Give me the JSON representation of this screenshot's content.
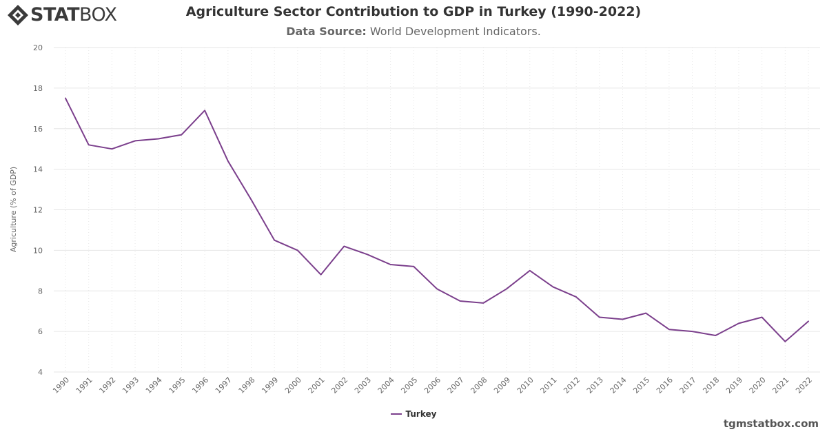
{
  "brand": {
    "logo_bold": "STAT",
    "logo_thin": "BOX",
    "site": "tgmstatbox.com"
  },
  "header": {
    "title": "Agriculture Sector Contribution to GDP in Turkey (1990-2022)",
    "source_label": "Data Source:",
    "source_value": "World Development Indicators."
  },
  "colors": {
    "series": "#7b3f8c",
    "grid": "#e6e6e6",
    "axis_text": "#666666"
  },
  "chart_data": {
    "type": "line",
    "title": "Agriculture Sector Contribution to GDP in Turkey (1990-2022)",
    "xlabel": "",
    "ylabel": "Agriculture (% of GDP)",
    "ylim": [
      4,
      20
    ],
    "yticks": [
      4,
      6,
      8,
      10,
      12,
      14,
      16,
      18,
      20
    ],
    "grid": true,
    "legend_position": "bottom-center",
    "x": [
      "1990",
      "1991",
      "1992",
      "1993",
      "1994",
      "1995",
      "1996",
      "1997",
      "1998",
      "1999",
      "2000",
      "2001",
      "2002",
      "2003",
      "2004",
      "2005",
      "2006",
      "2007",
      "2008",
      "2009",
      "2010",
      "2011",
      "2012",
      "2013",
      "2014",
      "2015",
      "2016",
      "2017",
      "2018",
      "2019",
      "2020",
      "2021",
      "2022"
    ],
    "series": [
      {
        "name": "Turkey",
        "values": [
          17.5,
          15.2,
          15.0,
          15.4,
          15.5,
          15.7,
          16.9,
          14.4,
          12.5,
          10.5,
          10.0,
          8.8,
          10.2,
          9.8,
          9.3,
          9.2,
          8.1,
          7.5,
          7.4,
          8.1,
          9.0,
          8.2,
          7.7,
          6.7,
          6.6,
          6.9,
          6.1,
          6.0,
          5.8,
          6.4,
          6.7,
          5.5,
          6.5
        ]
      }
    ]
  }
}
